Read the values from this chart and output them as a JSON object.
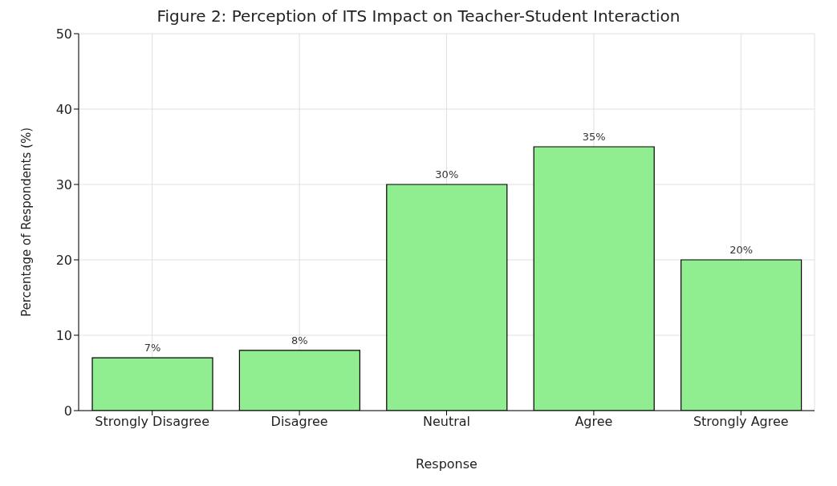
{
  "chart_data": {
    "type": "bar",
    "title": "Figure 2: Perception of ITS Impact on Teacher-Student Interaction",
    "xlabel": "Response",
    "ylabel": "Percentage of Respondents (%)",
    "categories": [
      "Strongly Disagree",
      "Disagree",
      "Neutral",
      "Agree",
      "Strongly Agree"
    ],
    "values": [
      7,
      8,
      30,
      35,
      20
    ],
    "color": "#90ee90",
    "value_labels": [
      "7%",
      "8%",
      "30%",
      "35%",
      "20%"
    ],
    "ylim": [
      0,
      50
    ],
    "yticks": [
      0,
      10,
      20,
      30,
      40,
      50
    ],
    "grid": true
  }
}
